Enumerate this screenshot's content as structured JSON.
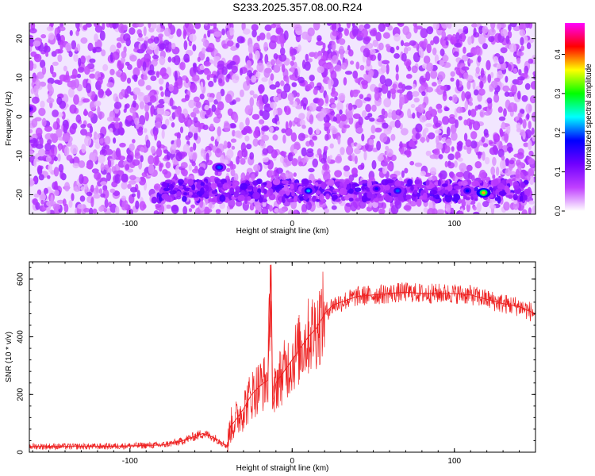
{
  "title": "S233.2025.357.08.00.R24",
  "chart_data": [
    {
      "type": "heatmap",
      "xlabel": "Height of straight line (km)",
      "ylabel": "Frequency (Hz)",
      "xlim": [
        -162,
        150
      ],
      "ylim": [
        -25,
        24
      ],
      "x_ticks": [
        -100,
        0,
        100
      ],
      "y_ticks": [
        -20,
        -10,
        0,
        10,
        20
      ],
      "colorbar": {
        "label": "Normalized spectral amplitude",
        "range": [
          0,
          0.48
        ],
        "ticks": [
          "0.0",
          "0.1",
          "0.2",
          "0.3",
          "0.4"
        ],
        "tick_values": [
          0,
          0.1,
          0.2,
          0.3,
          0.4
        ],
        "colormap": [
          "#ffffff",
          "#c040ff",
          "#7000ff",
          "#0000ff",
          "#00ffff",
          "#00ff00",
          "#ffff00",
          "#ff0000",
          "#ff00ff"
        ]
      },
      "features": [
        {
          "x": -45,
          "y": -13,
          "amplitude": 0.2
        },
        {
          "x": 10,
          "y": -19,
          "amplitude": 0.22
        },
        {
          "x": 65,
          "y": -19,
          "amplitude": 0.2
        },
        {
          "x": 118,
          "y": -19.5,
          "amplitude": 0.38
        },
        {
          "x": -162,
          "y": 2,
          "amplitude": 0.14
        },
        {
          "x": 52,
          "y": -18.5,
          "amplitude": 0.16
        },
        {
          "x": 108,
          "y": -19,
          "amplitude": 0.18
        }
      ],
      "notes_band_frequency": -19
    },
    {
      "type": "line",
      "xlabel": "Height of straight line (km)",
      "ylabel": "SNR (10 * v/v)",
      "xlim": [
        -162,
        150
      ],
      "ylim": [
        0,
        660
      ],
      "x_ticks": [
        -100,
        0,
        100
      ],
      "y_ticks": [
        0,
        200,
        400,
        600
      ],
      "color": "#ee2222",
      "series": [
        {
          "x": [
            -162,
            -140,
            -120,
            -100,
            -80,
            -70,
            -60,
            -55,
            -50,
            -45,
            -40,
            -38,
            -35,
            -30,
            -25,
            -20,
            -15,
            -13,
            -12,
            -10,
            -5,
            0,
            5,
            10,
            15,
            20,
            25,
            30,
            40,
            50,
            60,
            70,
            80,
            90,
            100,
            110,
            120,
            130,
            140,
            150
          ],
          "y": [
            20,
            20,
            20,
            22,
            25,
            35,
            55,
            65,
            55,
            40,
            20,
            90,
            110,
            150,
            200,
            230,
            250,
            650,
            150,
            240,
            280,
            320,
            360,
            400,
            430,
            480,
            510,
            520,
            540,
            545,
            550,
            555,
            550,
            550,
            550,
            545,
            530,
            515,
            505,
            480
          ]
        }
      ]
    }
  ]
}
